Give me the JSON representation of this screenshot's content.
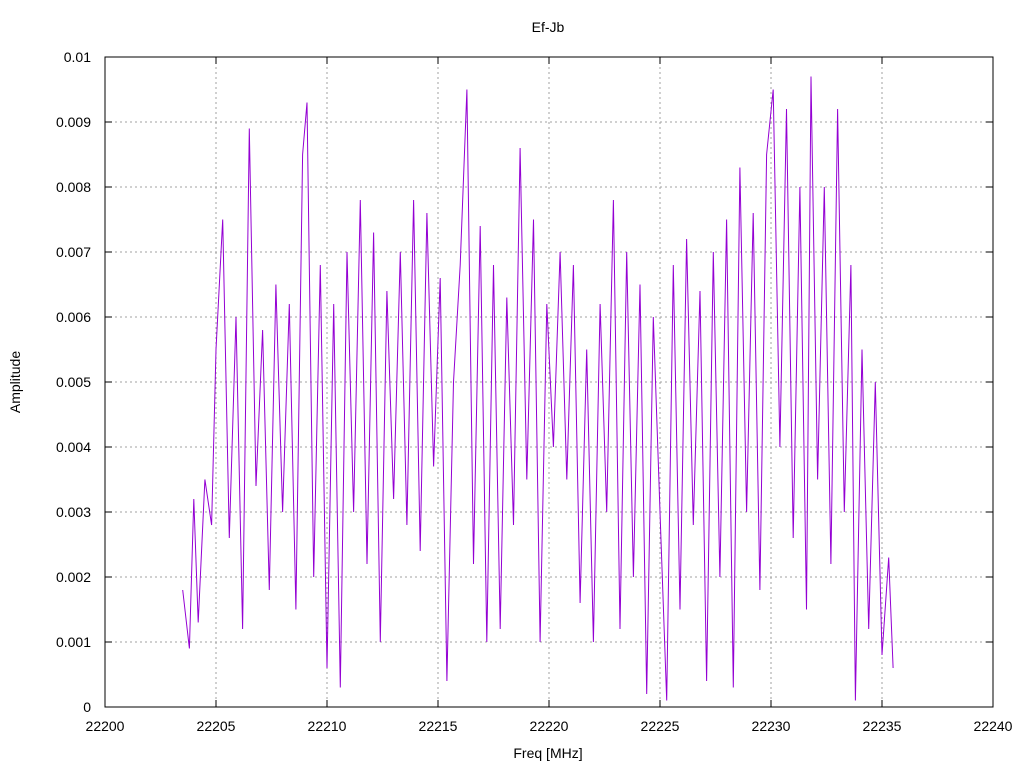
{
  "chart_data": {
    "type": "line",
    "title": "Ef-Jb",
    "xlabel": "Freq [MHz]",
    "ylabel": "Amplitude",
    "xlim": [
      22200,
      22240
    ],
    "ylim": [
      0,
      0.01
    ],
    "x_ticks": [
      "22200",
      "22205",
      "22210",
      "22215",
      "22220",
      "22225",
      "22230",
      "22235",
      "22240"
    ],
    "y_ticks": [
      "0",
      "0.001",
      "0.002",
      "0.003",
      "0.004",
      "0.005",
      "0.006",
      "0.007",
      "0.008",
      "0.009",
      "0.01"
    ],
    "grid": true,
    "series": [
      {
        "color": "#9400d3",
        "x_range": [
          22203.5,
          22235.5
        ],
        "points": [
          [
            22203.5,
            0.0018
          ],
          [
            22203.8,
            0.0009
          ],
          [
            22204.0,
            0.0032
          ],
          [
            22204.2,
            0.0013
          ],
          [
            22204.5,
            0.0035
          ],
          [
            22204.8,
            0.0028
          ],
          [
            22205.0,
            0.0055
          ],
          [
            22205.3,
            0.0075
          ],
          [
            22205.6,
            0.0026
          ],
          [
            22205.9,
            0.006
          ],
          [
            22206.2,
            0.0012
          ],
          [
            22206.5,
            0.0089
          ],
          [
            22206.8,
            0.0034
          ],
          [
            22207.1,
            0.0058
          ],
          [
            22207.4,
            0.0018
          ],
          [
            22207.7,
            0.0065
          ],
          [
            22208.0,
            0.003
          ],
          [
            22208.3,
            0.0062
          ],
          [
            22208.6,
            0.0015
          ],
          [
            22208.9,
            0.0085
          ],
          [
            22209.1,
            0.0093
          ],
          [
            22209.4,
            0.002
          ],
          [
            22209.7,
            0.0068
          ],
          [
            22210.0,
            0.0006
          ],
          [
            22210.3,
            0.0062
          ],
          [
            22210.6,
            0.0003
          ],
          [
            22210.9,
            0.007
          ],
          [
            22211.2,
            0.003
          ],
          [
            22211.5,
            0.0078
          ],
          [
            22211.8,
            0.0022
          ],
          [
            22212.1,
            0.0073
          ],
          [
            22212.4,
            0.001
          ],
          [
            22212.7,
            0.0064
          ],
          [
            22213.0,
            0.0032
          ],
          [
            22213.3,
            0.007
          ],
          [
            22213.6,
            0.0028
          ],
          [
            22213.9,
            0.0078
          ],
          [
            22214.2,
            0.0024
          ],
          [
            22214.5,
            0.0076
          ],
          [
            22214.8,
            0.0037
          ],
          [
            22215.1,
            0.0066
          ],
          [
            22215.4,
            0.0004
          ],
          [
            22215.7,
            0.005
          ],
          [
            22216.0,
            0.0068
          ],
          [
            22216.3,
            0.0095
          ],
          [
            22216.6,
            0.0022
          ],
          [
            22216.9,
            0.0074
          ],
          [
            22217.2,
            0.001
          ],
          [
            22217.5,
            0.0068
          ],
          [
            22217.8,
            0.0012
          ],
          [
            22218.1,
            0.0063
          ],
          [
            22218.4,
            0.0028
          ],
          [
            22218.7,
            0.0086
          ],
          [
            22219.0,
            0.0035
          ],
          [
            22219.3,
            0.0075
          ],
          [
            22219.6,
            0.001
          ],
          [
            22219.9,
            0.0062
          ],
          [
            22220.2,
            0.004
          ],
          [
            22220.5,
            0.007
          ],
          [
            22220.8,
            0.0035
          ],
          [
            22221.1,
            0.0068
          ],
          [
            22221.4,
            0.0016
          ],
          [
            22221.7,
            0.0055
          ],
          [
            22222.0,
            0.001
          ],
          [
            22222.3,
            0.0062
          ],
          [
            22222.6,
            0.003
          ],
          [
            22222.9,
            0.0078
          ],
          [
            22223.2,
            0.0012
          ],
          [
            22223.5,
            0.007
          ],
          [
            22223.8,
            0.002
          ],
          [
            22224.1,
            0.0065
          ],
          [
            22224.4,
            0.0002
          ],
          [
            22224.7,
            0.006
          ],
          [
            22225.0,
            0.003
          ],
          [
            22225.3,
            0.0001
          ],
          [
            22225.6,
            0.0068
          ],
          [
            22225.9,
            0.0015
          ],
          [
            22226.2,
            0.0072
          ],
          [
            22226.5,
            0.0028
          ],
          [
            22226.8,
            0.0064
          ],
          [
            22227.1,
            0.0004
          ],
          [
            22227.4,
            0.007
          ],
          [
            22227.7,
            0.002
          ],
          [
            22228.0,
            0.0075
          ],
          [
            22228.3,
            0.0003
          ],
          [
            22228.6,
            0.0083
          ],
          [
            22228.9,
            0.003
          ],
          [
            22229.2,
            0.0076
          ],
          [
            22229.5,
            0.0018
          ],
          [
            22229.8,
            0.0085
          ],
          [
            22230.1,
            0.0095
          ],
          [
            22230.4,
            0.004
          ],
          [
            22230.7,
            0.0092
          ],
          [
            22231.0,
            0.0026
          ],
          [
            22231.3,
            0.008
          ],
          [
            22231.6,
            0.0015
          ],
          [
            22231.8,
            0.0097
          ],
          [
            22232.1,
            0.0035
          ],
          [
            22232.4,
            0.008
          ],
          [
            22232.7,
            0.0022
          ],
          [
            22233.0,
            0.0092
          ],
          [
            22233.3,
            0.003
          ],
          [
            22233.6,
            0.0068
          ],
          [
            22233.8,
            0.0001
          ],
          [
            22234.1,
            0.0055
          ],
          [
            22234.4,
            0.0012
          ],
          [
            22234.7,
            0.005
          ],
          [
            22235.0,
            0.0008
          ],
          [
            22235.3,
            0.0023
          ],
          [
            22235.5,
            0.0006
          ]
        ]
      }
    ]
  }
}
